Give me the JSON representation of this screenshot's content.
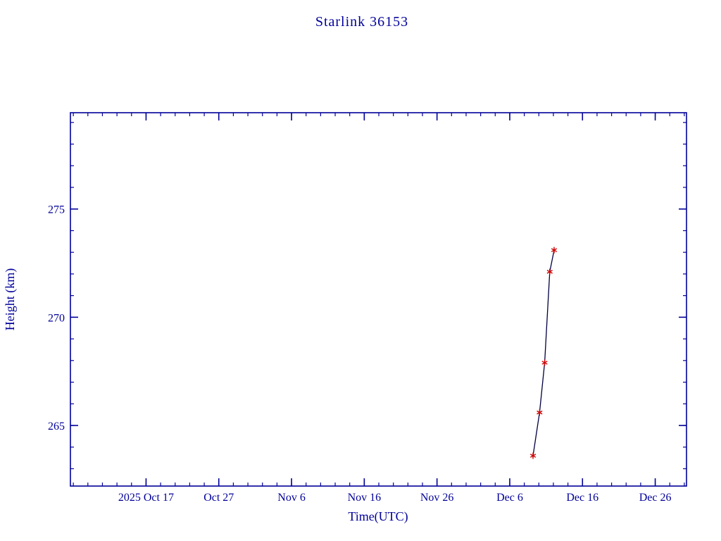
{
  "page": {
    "background_color": "#ffffff"
  },
  "colors": {
    "axis": "#000099",
    "text": "#000099",
    "line": "#000040",
    "marker": "#cc0000",
    "background": "#ffffff"
  },
  "chart_data": {
    "type": "line",
    "title": "Starlink 36153",
    "xlabel": "Time(UTC)",
    "ylabel": "Height (km)",
    "x_unit": "days since 2025 Oct 17",
    "x_tick_labels": [
      "2025 Oct 17",
      "Oct 27",
      "Nov  6",
      "Nov 16",
      "Nov 26",
      "Dec  6",
      "Dec 16",
      "Dec 26"
    ],
    "x_tick_days": [
      0,
      10,
      20,
      30,
      40,
      50,
      60,
      70
    ],
    "x_minor_step_days": 2,
    "xlim": [
      -10.4,
      74.3
    ],
    "y_ticks": [
      265,
      270,
      275
    ],
    "y_minor_step": 1,
    "ylim": [
      262.2,
      279.45
    ],
    "grid": false,
    "legend": false,
    "series": [
      {
        "name": "height",
        "marker": "asterisk",
        "marker_color": "#cc0000",
        "line_color": "#000040",
        "points": [
          {
            "x": 53.2,
            "y": 263.6,
            "date_approx": "2025 Dec 9"
          },
          {
            "x": 54.1,
            "y": 265.6,
            "date_approx": "2025 Dec 10"
          },
          {
            "x": 54.8,
            "y": 267.9,
            "date_approx": "2025 Dec 11"
          },
          {
            "x": 55.5,
            "y": 272.1,
            "date_approx": "2025 Dec 11"
          },
          {
            "x": 56.1,
            "y": 273.1,
            "date_approx": "2025 Dec 12"
          }
        ]
      }
    ]
  }
}
